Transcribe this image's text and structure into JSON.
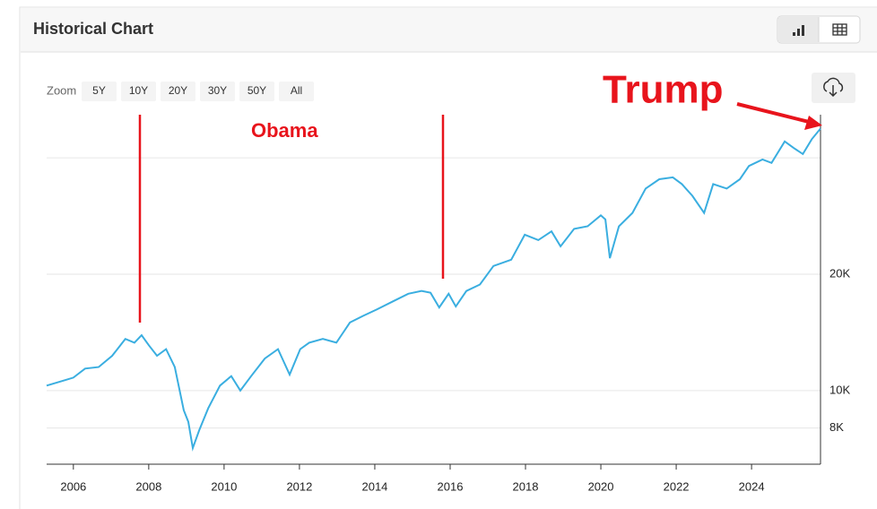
{
  "header": {
    "title": "Historical Chart"
  },
  "zoom": {
    "label": "Zoom",
    "options": [
      "5Y",
      "10Y",
      "20Y",
      "30Y",
      "50Y",
      "All"
    ]
  },
  "chart_data": {
    "type": "line",
    "annotations": [
      "Obama",
      "Trump"
    ],
    "x": [
      2005.29,
      2005.72,
      2006.0,
      2006.31,
      2006.67,
      2007.03,
      2007.38,
      2007.62,
      2007.81,
      2008.0,
      2008.22,
      2008.46,
      2008.69,
      2008.93,
      2009.05,
      2009.17,
      2009.34,
      2009.58,
      2009.89,
      2010.19,
      2010.43,
      2010.72,
      2011.08,
      2011.43,
      2011.74,
      2012.02,
      2012.26,
      2012.62,
      2012.98,
      2013.34,
      2013.69,
      2014.05,
      2014.53,
      2014.89,
      2015.24,
      2015.48,
      2015.71,
      2015.96,
      2016.15,
      2016.43,
      2016.79,
      2017.15,
      2017.62,
      2017.98,
      2018.34,
      2018.69,
      2018.93,
      2019.29,
      2019.65,
      2020.0,
      2020.12,
      2020.24,
      2020.48,
      2020.84,
      2021.19,
      2021.55,
      2021.91,
      2022.15,
      2022.43,
      2022.74,
      2022.98,
      2023.34,
      2023.69,
      2023.93,
      2024.29,
      2024.53,
      2024.88,
      2025.12,
      2025.36,
      2025.6,
      2025.83
    ],
    "values": [
      10300,
      10600,
      10800,
      11400,
      11500,
      12300,
      13600,
      13300,
      13900,
      13100,
      12300,
      12800,
      11500,
      8900,
      8300,
      7100,
      7900,
      9000,
      10300,
      10900,
      10000,
      10900,
      12100,
      12800,
      11000,
      12800,
      13300,
      13600,
      13300,
      15000,
      15600,
      16200,
      17100,
      17800,
      18100,
      17900,
      16400,
      17800,
      16500,
      18100,
      18800,
      21000,
      21800,
      25300,
      24500,
      25800,
      23600,
      26200,
      26600,
      28400,
      27700,
      22000,
      26600,
      28800,
      33300,
      35200,
      35600,
      34200,
      31900,
      28800,
      34200,
      33300,
      35200,
      38100,
      39600,
      38800,
      44100,
      42400,
      40900,
      44700,
      47600
    ],
    "color": "#3aaee0",
    "xlim": [
      2005.29,
      2025.83
    ],
    "xticks": [
      2006,
      2008,
      2010,
      2012,
      2014,
      2016,
      2018,
      2020,
      2022,
      2024
    ],
    "ylim": [
      6450,
      51700
    ],
    "yticks": [
      {
        "value": 8000,
        "label": "8K"
      },
      {
        "value": 10000,
        "label": "10K"
      },
      {
        "value": 20000,
        "label": "20K"
      },
      {
        "value": 40000,
        "label": null
      }
    ],
    "log_scale": true,
    "grid": true
  }
}
